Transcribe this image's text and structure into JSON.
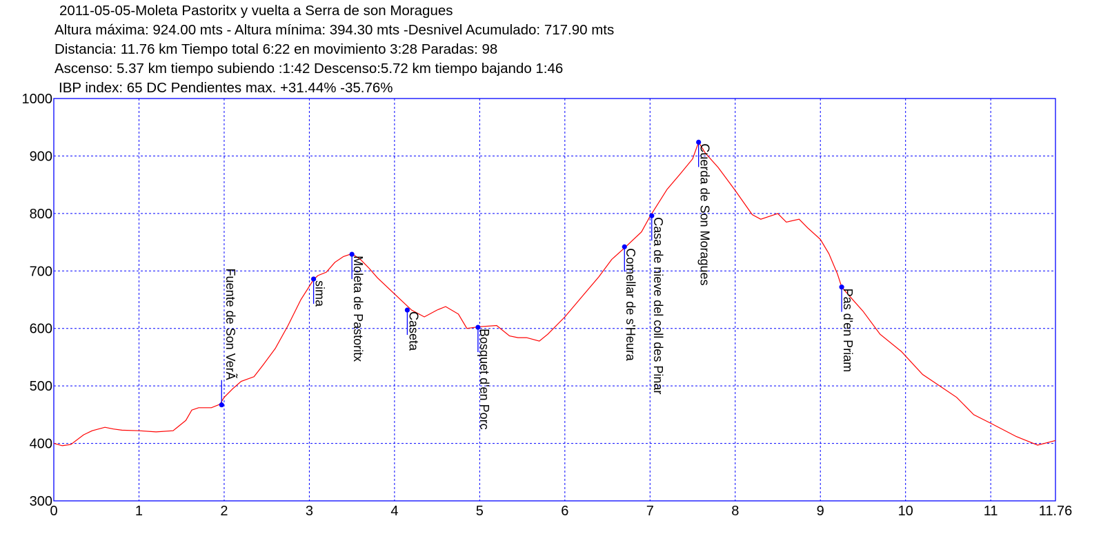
{
  "header": {
    "title": "2011-05-05-Moleta Pastoritx y vuelta a Serra de son Moragues",
    "line2": "Altura máxima: 924.00 mts - Altura mínima: 394.30 mts -Desnivel Acumulado: 717.90 mts",
    "line3": "Distancia: 11.76 km  Tiempo total 6:22  en movimiento 3:28 Paradas: 98",
    "line4": "Ascenso: 5.37 km  tiempo subiendo :1:42  Descenso:5.72 km tiempo bajando 1:46",
    "line5": "IBP index: 65 DC Pendientes max. +31.44%  -35.76%"
  },
  "colors": {
    "frame": "#0000ff",
    "grid": "#0000ff",
    "profile": "#ff0000",
    "waypoint": "#0000ff"
  },
  "chart_data": {
    "type": "line",
    "xlim": [
      0,
      11.76
    ],
    "ylim": [
      300,
      1000
    ],
    "x_ticks": [
      0,
      1,
      2,
      3,
      4,
      5,
      6,
      7,
      8,
      9,
      10,
      11,
      11.76
    ],
    "x_tick_labels": [
      "0",
      "1",
      "2",
      "3",
      "4",
      "5",
      "6",
      "7",
      "8",
      "9",
      "10",
      "11",
      "11.76"
    ],
    "y_ticks": [
      300,
      400,
      500,
      600,
      700,
      800,
      900,
      1000
    ],
    "y_tick_labels": [
      "300",
      "400",
      "500",
      "600",
      "700",
      "800",
      "900",
      "1000"
    ],
    "grid": true,
    "series": [
      {
        "x": [
          0,
          0.1,
          0.2,
          0.35,
          0.45,
          0.6,
          0.7,
          0.8,
          1.0,
          1.2,
          1.4,
          1.55,
          1.62,
          1.7,
          1.85,
          1.95,
          2.0,
          2.1,
          2.2,
          2.35,
          2.45,
          2.6,
          2.75,
          2.9,
          3.05,
          3.1,
          3.2,
          3.3,
          3.4,
          3.5,
          3.6,
          3.7,
          3.8,
          4.0,
          4.2,
          4.35,
          4.5,
          4.6,
          4.75,
          4.85,
          5.0,
          5.2,
          5.35,
          5.45,
          5.55,
          5.7,
          5.8,
          6.0,
          6.2,
          6.4,
          6.55,
          6.7,
          6.9,
          7.0,
          7.2,
          7.35,
          7.5,
          7.57,
          7.65,
          7.8,
          8.0,
          8.2,
          8.3,
          8.5,
          8.6,
          8.75,
          8.85,
          9.0,
          9.1,
          9.2,
          9.25,
          9.35,
          9.5,
          9.7,
          9.95,
          10.2,
          10.4,
          10.6,
          10.8,
          11.0,
          11.3,
          11.55,
          11.76
        ],
        "y": [
          400,
          396,
          398,
          415,
          422,
          428,
          425,
          423,
          422,
          420,
          422,
          440,
          458,
          462,
          462,
          468,
          480,
          495,
          508,
          516,
          535,
          565,
          605,
          650,
          685,
          692,
          698,
          715,
          725,
          730,
          720,
          705,
          688,
          660,
          632,
          620,
          632,
          638,
          625,
          600,
          603,
          605,
          587,
          584,
          584,
          578,
          590,
          620,
          655,
          690,
          720,
          740,
          768,
          795,
          842,
          868,
          895,
          924,
          905,
          880,
          840,
          798,
          790,
          800,
          785,
          790,
          775,
          755,
          730,
          695,
          672,
          655,
          630,
          590,
          560,
          520,
          500,
          480,
          450,
          435,
          412,
          397,
          405
        ]
      }
    ],
    "waypoints": [
      {
        "label": "Fuente de Son VerÃ­",
        "x": 1.97,
        "y": 467
      },
      {
        "label": "sima",
        "x": 3.05,
        "y": 686
      },
      {
        "label": "Moleta de Pastoritx",
        "x": 3.5,
        "y": 729
      },
      {
        "label": "Caseta",
        "x": 4.15,
        "y": 632
      },
      {
        "label": "Bosquet d'en Porc",
        "x": 4.98,
        "y": 602
      },
      {
        "label": "Comellar de s'Heura",
        "x": 6.7,
        "y": 742
      },
      {
        "label": "Casa de nieve del coll des Pinar",
        "x": 7.02,
        "y": 796
      },
      {
        "label": "Cuerda de Son Moragues",
        "x": 7.57,
        "y": 924
      },
      {
        "label": "Pas d'en Priam",
        "x": 9.25,
        "y": 672
      }
    ]
  }
}
